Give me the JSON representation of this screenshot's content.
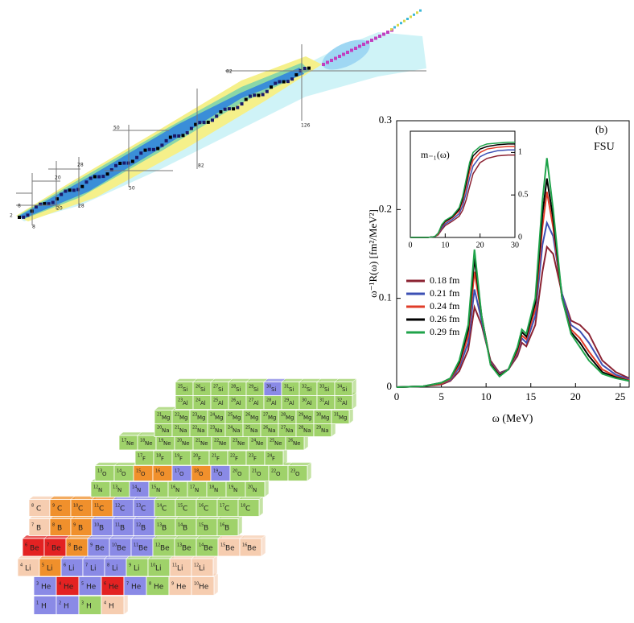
{
  "chart_data": [
    {
      "type": "line",
      "annotations": [
        "(b)",
        "FSU"
      ],
      "x_label": "ω (MeV)",
      "y_label": "ω⁻¹R(ω) [fm²/MeV²]",
      "xlim": [
        0,
        26
      ],
      "ylim": [
        0,
        0.3
      ],
      "xticks": [
        0,
        5,
        10,
        15,
        20,
        25
      ],
      "yticks": [
        0,
        0.1,
        0.2,
        0.3
      ],
      "x": [
        0,
        3,
        5,
        6,
        7,
        8,
        8.7,
        9.5,
        10.5,
        11.5,
        12.5,
        13.5,
        14,
        14.5,
        15.5,
        16.3,
        16.8,
        17.5,
        18.5,
        19.5,
        20.5,
        21.5,
        23,
        24.5,
        26
      ],
      "series": [
        {
          "name": "0.18 fm",
          "color": "#8b2232",
          "values": [
            0,
            0.001,
            0.003,
            0.007,
            0.018,
            0.042,
            0.09,
            0.07,
            0.03,
            0.016,
            0.02,
            0.035,
            0.05,
            0.046,
            0.07,
            0.13,
            0.158,
            0.15,
            0.105,
            0.075,
            0.07,
            0.06,
            0.03,
            0.017,
            0.01
          ]
        },
        {
          "name": "0.21 fm",
          "color": "#3c50b4",
          "values": [
            0,
            0.001,
            0.004,
            0.008,
            0.022,
            0.05,
            0.11,
            0.075,
            0.028,
            0.015,
            0.02,
            0.038,
            0.055,
            0.05,
            0.08,
            0.16,
            0.185,
            0.17,
            0.105,
            0.07,
            0.063,
            0.05,
            0.025,
            0.014,
            0.009
          ]
        },
        {
          "name": "0.24 fm",
          "color": "#e03c28",
          "values": [
            0,
            0.001,
            0.004,
            0.009,
            0.025,
            0.058,
            0.13,
            0.08,
            0.027,
            0.014,
            0.02,
            0.04,
            0.058,
            0.054,
            0.088,
            0.18,
            0.22,
            0.18,
            0.1,
            0.065,
            0.055,
            0.04,
            0.02,
            0.012,
            0.008
          ]
        },
        {
          "name": "0.26 fm",
          "color": "#000000",
          "values": [
            0,
            0.001,
            0.005,
            0.01,
            0.028,
            0.065,
            0.145,
            0.08,
            0.026,
            0.013,
            0.02,
            0.043,
            0.062,
            0.057,
            0.095,
            0.195,
            0.235,
            0.19,
            0.1,
            0.062,
            0.05,
            0.035,
            0.017,
            0.011,
            0.007
          ]
        },
        {
          "name": "0.29 fm",
          "color": "#1fa34a",
          "values": [
            0,
            0.001,
            0.005,
            0.01,
            0.03,
            0.07,
            0.155,
            0.08,
            0.025,
            0.012,
            0.02,
            0.045,
            0.065,
            0.06,
            0.1,
            0.21,
            0.258,
            0.2,
            0.1,
            0.06,
            0.045,
            0.03,
            0.015,
            0.01,
            0.007
          ]
        }
      ]
    },
    {
      "type": "line",
      "annotations": [
        "m₋₁(ω)"
      ],
      "xlim": [
        0,
        30
      ],
      "ylim": [
        0,
        1.25
      ],
      "xticks": [
        0,
        10,
        20,
        30
      ],
      "yticks": [
        0,
        0.5,
        1
      ],
      "x": [
        0,
        5,
        7,
        8,
        9,
        10,
        12,
        14,
        15,
        16,
        17,
        18,
        20,
        22,
        25,
        28,
        30
      ],
      "series": [
        {
          "color": "#8b2232",
          "values": [
            0,
            0,
            0.01,
            0.03,
            0.09,
            0.14,
            0.19,
            0.25,
            0.32,
            0.44,
            0.6,
            0.75,
            0.88,
            0.93,
            0.96,
            0.97,
            0.97
          ]
        },
        {
          "color": "#3c50b4",
          "values": [
            0,
            0,
            0.01,
            0.04,
            0.11,
            0.16,
            0.21,
            0.28,
            0.37,
            0.52,
            0.7,
            0.84,
            0.95,
            0.99,
            1.02,
            1.03,
            1.03
          ]
        },
        {
          "color": "#e03c28",
          "values": [
            0,
            0,
            0.01,
            0.04,
            0.13,
            0.18,
            0.23,
            0.31,
            0.42,
            0.59,
            0.78,
            0.91,
            1.0,
            1.04,
            1.06,
            1.07,
            1.07
          ]
        },
        {
          "color": "#000000",
          "values": [
            0,
            0,
            0.01,
            0.05,
            0.14,
            0.19,
            0.24,
            0.33,
            0.45,
            0.64,
            0.84,
            0.96,
            1.04,
            1.07,
            1.09,
            1.1,
            1.1
          ]
        },
        {
          "color": "#1fa34a",
          "values": [
            0,
            0,
            0.01,
            0.05,
            0.15,
            0.2,
            0.25,
            0.35,
            0.48,
            0.68,
            0.88,
            1.0,
            1.07,
            1.1,
            1.11,
            1.12,
            1.12
          ]
        }
      ]
    }
  ],
  "nuclide_map": {
    "magic_labels": [
      2,
      8,
      8,
      20,
      20,
      28,
      28,
      50,
      50,
      82,
      82,
      126
    ]
  },
  "nuclide_blocks": {
    "rows": [
      {
        "symbol": "H",
        "A": [
          1,
          2,
          3,
          4
        ],
        "colors": [
          "#8a8ae6",
          "#8a8ae6",
          "#9fd26a",
          "#f6cdb0"
        ]
      },
      {
        "symbol": "He",
        "A": [
          3,
          4,
          5,
          6,
          7,
          8,
          9,
          10
        ],
        "colors": [
          "#8a8ae6",
          "#e32222",
          "#8a8ae6",
          "#e32222",
          "#8a8ae6",
          "#9fd26a",
          "#f6cdb0",
          "#f6cdb0"
        ]
      },
      {
        "symbol": "Li",
        "A": [
          4,
          5,
          6,
          7,
          8,
          9,
          10,
          11,
          12
        ],
        "colors": [
          "#f6cdb0",
          "#f0902c",
          "#8a8ae6",
          "#8a8ae6",
          "#8a8ae6",
          "#9fd26a",
          "#9fd26a",
          "#f6cdb0",
          "#f6cdb0"
        ]
      },
      {
        "symbol": "Be",
        "A": [
          6,
          7,
          8,
          9,
          10,
          11,
          12,
          13,
          14,
          15,
          16
        ],
        "colors": [
          "#e32222",
          "#e32222",
          "#f0902c",
          "#8a8ae6",
          "#8a8ae6",
          "#8a8ae6",
          "#9fd26a",
          "#9fd26a",
          "#9fd26a",
          "#f6cdb0",
          "#f6cdb0"
        ]
      },
      {
        "symbol": "B",
        "A": [
          7,
          8,
          9,
          10,
          11,
          12,
          13,
          14,
          15,
          16
        ],
        "colors": [
          "#f6cdb0",
          "#f0902c",
          "#f0902c",
          "#8a8ae6",
          "#8a8ae6",
          "#8a8ae6",
          "#9fd26a",
          "#9fd26a",
          "#9fd26a",
          "#9fd26a"
        ]
      },
      {
        "symbol": "C",
        "A": [
          8,
          9,
          10,
          11,
          12,
          13,
          14,
          15,
          16,
          17,
          18
        ],
        "colors": [
          "#f6cdb0",
          "#f0902c",
          "#f0902c",
          "#f0902c",
          "#8a8ae6",
          "#8a8ae6",
          "#9fd26a",
          "#9fd26a",
          "#9fd26a",
          "#9fd26a",
          "#9fd26a"
        ]
      },
      {
        "symbol": "N",
        "A": [
          12,
          13,
          14,
          15,
          16,
          17,
          18,
          19,
          20
        ],
        "colors": [
          "#9fd26a",
          "#9fd26a",
          "#8a8ae6",
          "#9fd26a",
          "#9fd26a",
          "#9fd26a",
          "#9fd26a",
          "#9fd26a",
          "#9fd26a"
        ]
      },
      {
        "symbol": "O",
        "A": [
          13,
          14,
          15,
          16,
          17,
          18,
          19,
          20,
          21,
          22,
          23
        ],
        "colors": [
          "#9fd26a",
          "#9fd26a",
          "#f0902c",
          "#f0902c",
          "#8a8ae6",
          "#f0902c",
          "#8a8ae6",
          "#9fd26a",
          "#9fd26a",
          "#9fd26a",
          "#9fd26a"
        ]
      },
      {
        "symbol": "F",
        "A": [
          17,
          18,
          19,
          20,
          21,
          22,
          23,
          24
        ],
        "colors": [
          "#9fd26a",
          "#9fd26a",
          "#9fd26a",
          "#9fd26a",
          "#9fd26a",
          "#9fd26a",
          "#9fd26a",
          "#9fd26a"
        ]
      },
      {
        "symbol": "Ne",
        "A": [
          17,
          18,
          19,
          20,
          21,
          22,
          23,
          24,
          25,
          26
        ],
        "colors": [
          "#9fd26a",
          "#9fd26a",
          "#9fd26a",
          "#9fd26a",
          "#9fd26a",
          "#9fd26a",
          "#9fd26a",
          "#9fd26a",
          "#9fd26a",
          "#9fd26a"
        ]
      },
      {
        "symbol": "Na",
        "A": [
          20,
          21,
          22,
          23,
          24,
          25,
          26,
          27,
          28,
          29
        ],
        "colors": [
          "#9fd26a",
          "#9fd26a",
          "#9fd26a",
          "#9fd26a",
          "#9fd26a",
          "#9fd26a",
          "#9fd26a",
          "#9fd26a",
          "#9fd26a",
          "#9fd26a"
        ]
      },
      {
        "symbol": "Mg",
        "A": [
          21,
          22,
          23,
          24,
          25,
          26,
          27,
          28,
          29,
          30,
          31
        ],
        "colors": [
          "#9fd26a",
          "#9fd26a",
          "#9fd26a",
          "#9fd26a",
          "#9fd26a",
          "#9fd26a",
          "#9fd26a",
          "#9fd26a",
          "#9fd26a",
          "#9fd26a",
          "#9fd26a"
        ]
      },
      {
        "symbol": "Al",
        "A": [
          23,
          24,
          25,
          26,
          27,
          28,
          29,
          30,
          31,
          32
        ],
        "colors": [
          "#9fd26a",
          "#9fd26a",
          "#9fd26a",
          "#9fd26a",
          "#9fd26a",
          "#9fd26a",
          "#9fd26a",
          "#9fd26a",
          "#9fd26a",
          "#9fd26a"
        ]
      },
      {
        "symbol": "Si",
        "A": [
          25,
          26,
          27,
          28,
          29,
          30,
          31,
          32,
          33,
          34
        ],
        "colors": [
          "#9fd26a",
          "#9fd26a",
          "#9fd26a",
          "#9fd26a",
          "#9fd26a",
          "#8a8ae6",
          "#9fd26a",
          "#9fd26a",
          "#9fd26a",
          "#9fd26a"
        ]
      }
    ]
  }
}
